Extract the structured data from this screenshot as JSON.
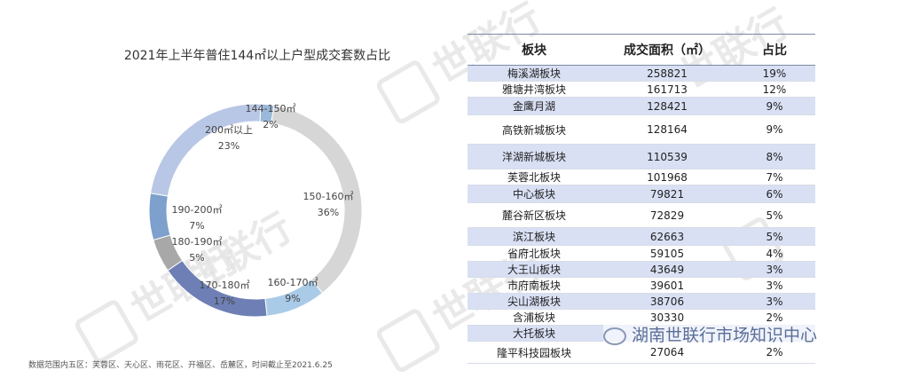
{
  "chart_data": [
    {
      "type": "pie",
      "title": "2021年上半年普住144㎡以上户型成交套数占比",
      "donut": true,
      "categories": [
        "144-150㎡",
        "150-160㎡",
        "160-170㎡",
        "170-180㎡",
        "180-190㎡",
        "190-200㎡",
        "200㎡以上"
      ],
      "values": [
        2,
        36,
        9,
        17,
        5,
        7,
        23
      ],
      "value_labels": [
        "2%",
        "36%",
        "9%",
        "17%",
        "5%",
        "7%",
        "23%"
      ],
      "colors": [
        "#9ab8da",
        "#d6d6d6",
        "#a9cbe8",
        "#6d7fb5",
        "#a8a8a8",
        "#7da0cc",
        "#b9c7e6"
      ]
    },
    {
      "type": "table",
      "columns": [
        "板块",
        "成交面积（㎡）",
        "占比"
      ],
      "rows": [
        [
          "梅溪湖板块",
          "258821",
          "19%"
        ],
        [
          "雅塘井湾板块",
          "161713",
          "12%"
        ],
        [
          "金鹰月湖",
          "128421",
          "9%"
        ],
        [
          "高铁新城板块",
          "128164",
          "9%"
        ],
        [
          "洋湖新城板块",
          "110539",
          "8%"
        ],
        [
          "芙蓉北板块",
          "101968",
          "7%"
        ],
        [
          "中心板块",
          "79821",
          "6%"
        ],
        [
          "麓谷新区板块",
          "72829",
          "5%"
        ],
        [
          "滨江板块",
          "62663",
          "5%"
        ],
        [
          "省府北板块",
          "59105",
          "4%"
        ],
        [
          "大王山板块",
          "43649",
          "3%"
        ],
        [
          "市府南板块",
          "39601",
          "3%"
        ],
        [
          "尖山湖板块",
          "38706",
          "3%"
        ],
        [
          "含浦板块",
          "30330",
          "2%"
        ],
        [
          "大托板块",
          "",
          ""
        ],
        [
          "隆平科技园板块",
          "27064",
          "2%"
        ]
      ],
      "highlighted_rows": [
        0,
        2,
        4,
        6,
        8,
        10,
        12,
        14
      ]
    }
  ],
  "footnote": "数据范围内五区：芙蓉区、天心区、雨花区、开福区、岳麓区，时间截止至2021.6.25",
  "watermark": "世联行",
  "wechat_label": "湖南世联行市场知识中心"
}
